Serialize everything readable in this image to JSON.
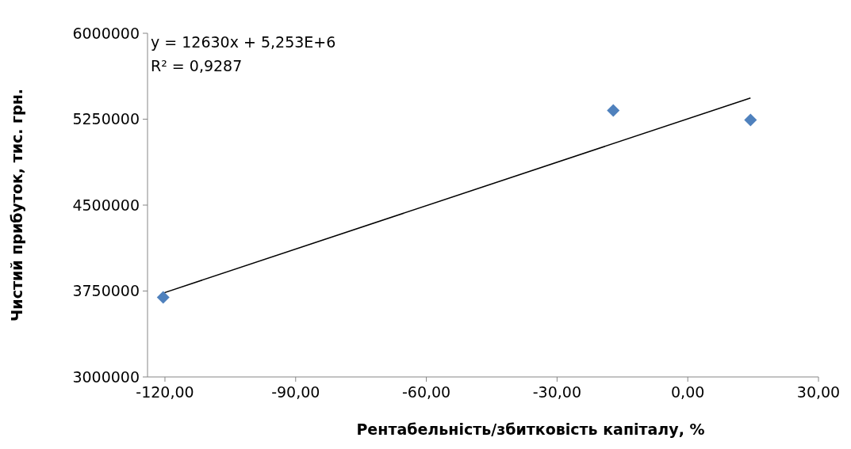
{
  "chart_data": {
    "type": "scatter",
    "xlabel": "Рентабельність/збитковість капіталу, %",
    "ylabel": "Чистий прибуток, тис. грн.",
    "xlim": [
      -124,
      30
    ],
    "ylim": [
      3000000,
      6000000
    ],
    "xticks": [
      {
        "value": -120,
        "label": "-120,00"
      },
      {
        "value": -90,
        "label": "-90,00"
      },
      {
        "value": -60,
        "label": "-60,00"
      },
      {
        "value": -30,
        "label": "-30,00"
      },
      {
        "value": 0,
        "label": "0,00"
      },
      {
        "value": 30,
        "label": "30,00"
      }
    ],
    "yticks": [
      3000000,
      3750000,
      4500000,
      5250000,
      6000000
    ],
    "grid": false,
    "annotations": [
      "y = 12630x + 5,253E+6",
      "R² = 0,9287"
    ],
    "series": [
      {
        "color": "#4f81bd",
        "marker": "diamond",
        "x": [
          -120.4,
          -17.1,
          14.4
        ],
        "values": [
          3694000,
          5326000,
          5243000
        ]
      },
      {
        "type": "line",
        "color": "#000000",
        "marker": "none",
        "x": [
          -120.4,
          14.4
        ],
        "values": [
          3732000,
          5435000
        ]
      }
    ]
  }
}
